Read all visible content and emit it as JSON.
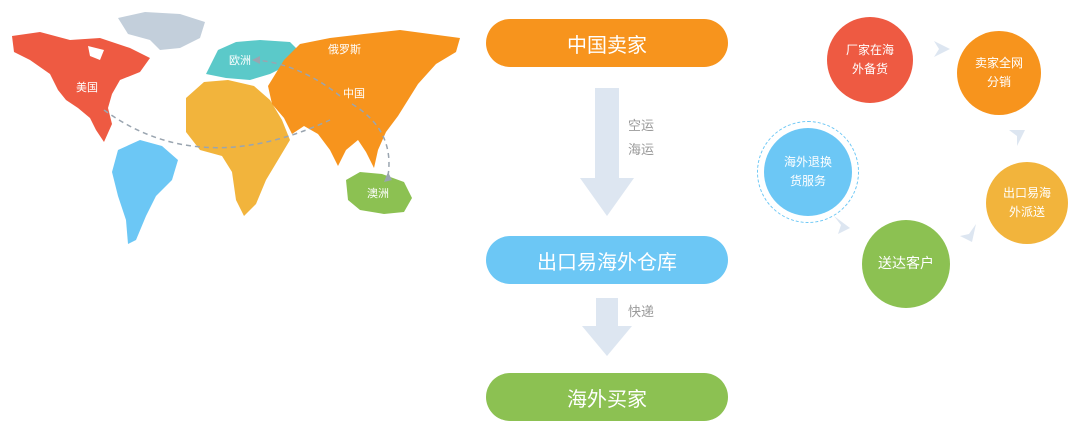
{
  "map": {
    "usa": "美国",
    "europe": "欧洲",
    "russia": "俄罗斯",
    "china": "中国",
    "australia": "澳洲"
  },
  "flow": {
    "china_seller": "中国卖家",
    "transport_1": "空运",
    "transport_2": "海运",
    "warehouse": "出口易海外仓库",
    "express": "快递",
    "overseas_buyer": "海外买家"
  },
  "cycle": {
    "factory_stock": [
      "厂家在海",
      "外备货"
    ],
    "seller_distribution": [
      "卖家全网",
      "分销"
    ],
    "ck1_delivery": [
      "出口易海",
      "外派送"
    ],
    "deliver_customer": "送达客户",
    "return_service": [
      "海外退换",
      "货服务"
    ]
  },
  "colors": {
    "orange": "#f7941d",
    "blue": "#6cc7f5",
    "green": "#8cc152",
    "red": "#ee5a42",
    "yellow": "#f2b43c",
    "teal": "#5bc9c9",
    "arrow": "#dde6f1"
  }
}
